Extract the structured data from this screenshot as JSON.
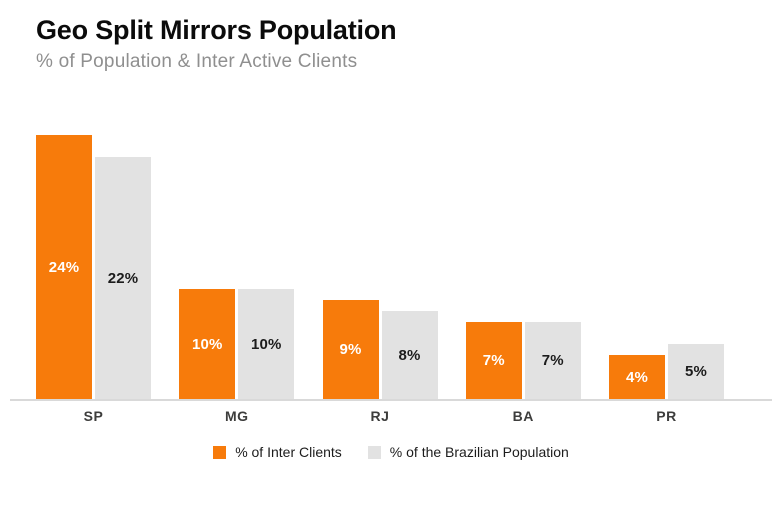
{
  "header": {
    "title": "Geo Split Mirrors Population",
    "subtitle": "% of Population &amp; Inter Active Clients"
  },
  "chart_data": {
    "type": "bar",
    "title": "Geo Split Mirrors Population",
    "subtitle": "% of Population & Inter Active Clients",
    "categories": [
      "SP",
      "MG",
      "RJ",
      "BA",
      "PR"
    ],
    "series": [
      {
        "name": "% of Inter Clients",
        "color": "#F77B0B",
        "label_color": "#ffffff",
        "values": [
          24,
          10,
          9,
          7,
          4
        ],
        "labels": [
          "24%",
          "10%",
          "9%",
          "7%",
          "4%"
        ]
      },
      {
        "name": "% of the Brazilian Population",
        "color": "#E2E2E2",
        "label_color": "#1c1c1c",
        "values": [
          22,
          10,
          8,
          7,
          5
        ],
        "labels": [
          "22%",
          "10%",
          "8%",
          "7%",
          "5%"
        ]
      }
    ],
    "xlabel": "",
    "ylabel": "",
    "ylim": [
      0,
      29
    ],
    "grid": false,
    "legend_position": "bottom",
    "value_labels_shown": true
  }
}
